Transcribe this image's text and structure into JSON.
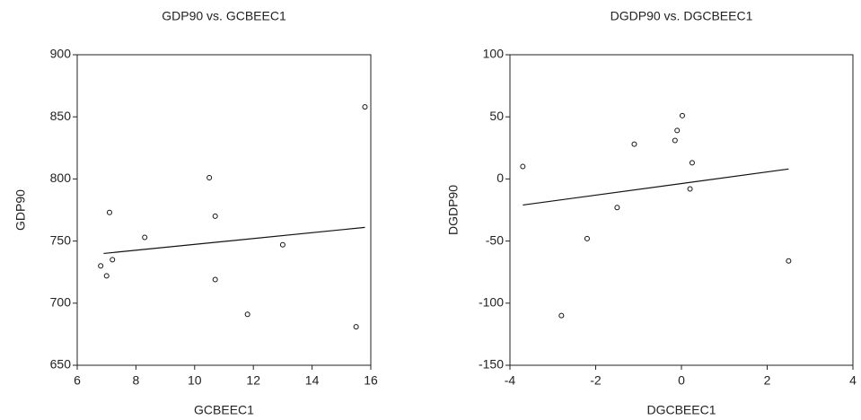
{
  "chart_data": [
    {
      "type": "scatter",
      "title": "GDP90 vs. GCBEEC1",
      "x_label": "GCBEEC1",
      "y_label": "GDP90",
      "x": [
        6.8,
        7.0,
        7.1,
        7.2,
        8.3,
        10.5,
        10.7,
        10.7,
        11.8,
        13.0,
        15.5,
        15.8
      ],
      "y": [
        730,
        722,
        773,
        735,
        753,
        801,
        770,
        719,
        691,
        747,
        681,
        858
      ],
      "fit": {
        "x": [
          6.9,
          15.8
        ],
        "y": [
          740,
          761
        ]
      },
      "xlim": [
        6,
        16
      ],
      "xticks": [
        6,
        8,
        10,
        12,
        14,
        16
      ],
      "ylim": [
        650,
        900
      ],
      "yticks": [
        650,
        700,
        750,
        800,
        850,
        900
      ]
    },
    {
      "type": "scatter",
      "title": "DGDP90 vs. DGCBEEC1",
      "x_label": "DGCBEEC1",
      "y_label": "DGDP90",
      "x": [
        -3.7,
        -2.8,
        -2.2,
        -1.5,
        -1.1,
        -0.15,
        -0.1,
        0.02,
        0.25,
        0.2,
        2.5
      ],
      "y": [
        10,
        -110,
        -48,
        -23,
        28,
        31,
        39,
        51,
        13,
        -8,
        -66
      ],
      "fit": {
        "x": [
          -3.7,
          2.5
        ],
        "y": [
          -21,
          8
        ]
      },
      "xlim": [
        -4,
        4
      ],
      "xticks": [
        -4,
        -2,
        0,
        2,
        4
      ],
      "ylim": [
        -150,
        100
      ],
      "yticks": [
        -150,
        -100,
        -50,
        0,
        50,
        100
      ]
    }
  ]
}
